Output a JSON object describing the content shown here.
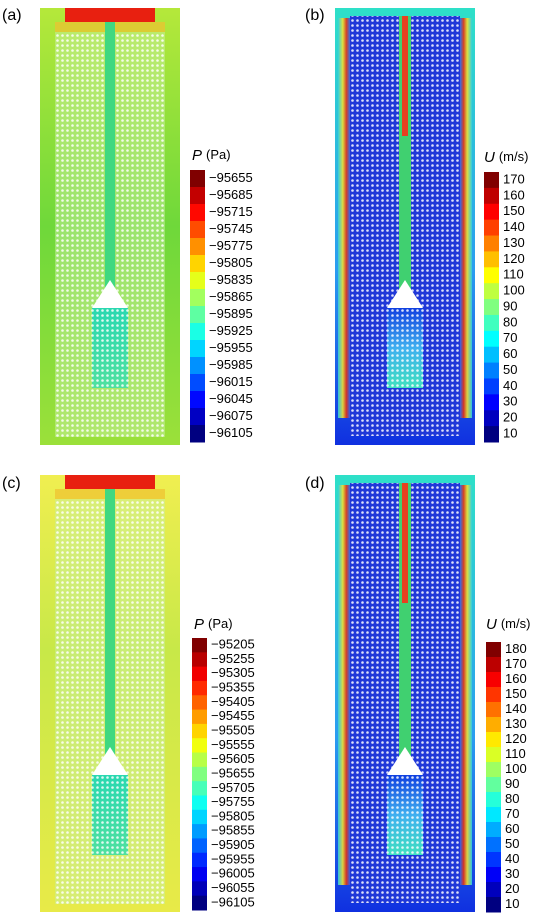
{
  "panels": [
    {
      "label": "(a)",
      "colorbar": {
        "symbol": "P",
        "unit": "(Pa)",
        "ticks": [
          "−95655",
          "−95685",
          "−95715",
          "−95745",
          "−95775",
          "−95805",
          "−95835",
          "−95865",
          "−95895",
          "−95925",
          "−95955",
          "−95985",
          "−96015",
          "−96045",
          "−96075",
          "−96105"
        ]
      }
    },
    {
      "label": "(b)",
      "colorbar": {
        "symbol": "U",
        "unit": "(m/s)",
        "ticks": [
          "170",
          "160",
          "150",
          "140",
          "130",
          "120",
          "110",
          "100",
          "90",
          "80",
          "70",
          "60",
          "50",
          "40",
          "30",
          "20",
          "10"
        ]
      }
    },
    {
      "label": "(c)",
      "colorbar": {
        "symbol": "P",
        "unit": "(Pa)",
        "ticks": [
          "−95205",
          "−95255",
          "−95305",
          "−95355",
          "−95405",
          "−95455",
          "−95505",
          "−95555",
          "−95605",
          "−95655",
          "−95705",
          "−95755",
          "−95805",
          "−95855",
          "−95905",
          "−95955",
          "−96005",
          "−96055",
          "−96105"
        ]
      }
    },
    {
      "label": "(d)",
      "colorbar": {
        "symbol": "U",
        "unit": "(m/s)",
        "ticks": [
          "180",
          "170",
          "160",
          "150",
          "140",
          "130",
          "120",
          "110",
          "100",
          "90",
          "80",
          "70",
          "60",
          "50",
          "40",
          "30",
          "20",
          "10"
        ]
      }
    }
  ]
}
